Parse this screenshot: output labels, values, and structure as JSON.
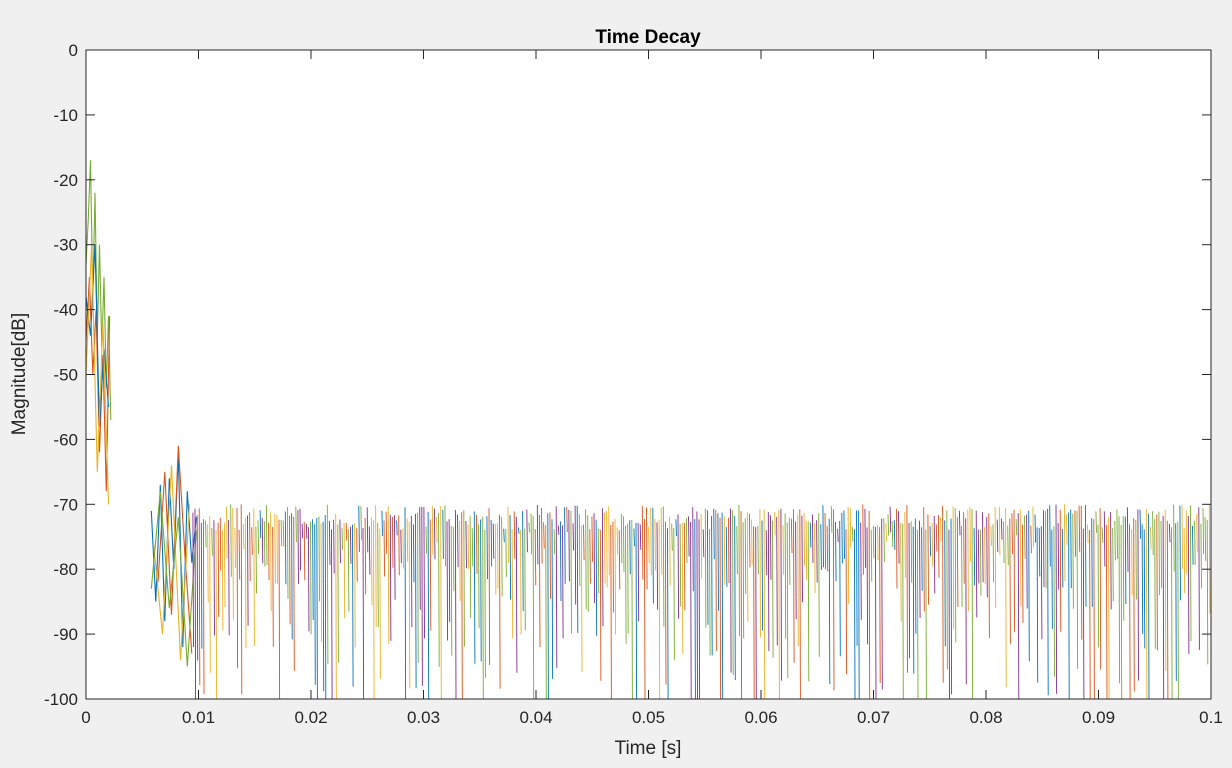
{
  "chart_data": {
    "type": "line",
    "title": "Time Decay",
    "xlabel": "Time [s]",
    "ylabel": "Magnitude[dB]",
    "xlim": [
      0,
      0.1
    ],
    "ylim": [
      -100,
      0
    ],
    "x_ticks": [
      0,
      0.01,
      0.02,
      0.03,
      0.04,
      0.05,
      0.06,
      0.07,
      0.08,
      0.09,
      0.1
    ],
    "x_tick_labels": [
      "0",
      "0.01",
      "0.02",
      "0.03",
      "0.04",
      "0.05",
      "0.06",
      "0.07",
      "0.08",
      "0.09",
      "0.1"
    ],
    "y_ticks": [
      0,
      -10,
      -20,
      -30,
      -40,
      -50,
      -60,
      -70,
      -80,
      -90,
      -100
    ],
    "y_tick_labels": [
      "0",
      "-10",
      "-20",
      "-30",
      "-40",
      "-50",
      "-60",
      "-70",
      "-80",
      "-90",
      "-100"
    ],
    "grid": false,
    "legend": "none",
    "series_colors": [
      "#0072BD",
      "#D95319",
      "#EDB120",
      "#7E2F8E",
      "#77AC30"
    ],
    "series": [
      {
        "color": "#77AC30",
        "x": [
          0.0,
          0.0002,
          0.0004,
          0.0006,
          0.0008,
          0.001,
          0.0012,
          0.0014,
          0.0016,
          0.0018,
          0.002,
          0.0022
        ],
        "values": [
          -33,
          -26,
          -17,
          -38,
          -22,
          -44,
          -30,
          -46,
          -35,
          -52,
          -41,
          -57
        ]
      },
      {
        "color": "#D95319",
        "x": [
          0.0,
          0.0003,
          0.0006,
          0.0009,
          0.0012,
          0.0015,
          0.0018,
          0.0021
        ],
        "values": [
          -45,
          -35,
          -50,
          -40,
          -62,
          -47,
          -68,
          -41
        ]
      },
      {
        "color": "#0072BD",
        "x": [
          0.0,
          0.0004,
          0.0008,
          0.0012,
          0.0016,
          0.002
        ],
        "values": [
          -38,
          -44,
          -30,
          -58,
          -46,
          -55
        ]
      },
      {
        "color": "#EDB120",
        "x": [
          0.0,
          0.0005,
          0.001,
          0.0015,
          0.002
        ],
        "values": [
          -50,
          -30,
          -65,
          -42,
          -70
        ]
      },
      {
        "color": "#0072BD",
        "x": [
          0.0058,
          0.0062,
          0.0066,
          0.007,
          0.0074,
          0.0078,
          0.0082,
          0.0086,
          0.009,
          0.0094,
          0.0098
        ],
        "values": [
          -71,
          -85,
          -67,
          -88,
          -66,
          -80,
          -62,
          -92,
          -68,
          -79,
          -72
        ]
      },
      {
        "color": "#D95319",
        "x": [
          0.0064,
          0.007,
          0.0076,
          0.0082,
          0.0088,
          0.0094
        ],
        "values": [
          -82,
          -65,
          -87,
          -61,
          -78,
          -93
        ]
      },
      {
        "color": "#EDB120",
        "x": [
          0.006,
          0.0068,
          0.0076,
          0.0084,
          0.0092
        ],
        "values": [
          -76,
          -90,
          -64,
          -94,
          -70
        ]
      },
      {
        "color": "#77AC30",
        "x": [
          0.0058,
          0.0066,
          0.0074,
          0.0082,
          0.009,
          0.0098
        ],
        "values": [
          -83,
          -68,
          -86,
          -72,
          -95,
          -74
        ]
      }
    ],
    "noise": {
      "x_range": [
        0.0095,
        0.1
      ],
      "base_db": -74,
      "min_db": -100,
      "max_db": -63,
      "colors": [
        "#0072BD",
        "#D95319",
        "#EDB120",
        "#7E2F8E",
        "#77AC30"
      ]
    }
  }
}
